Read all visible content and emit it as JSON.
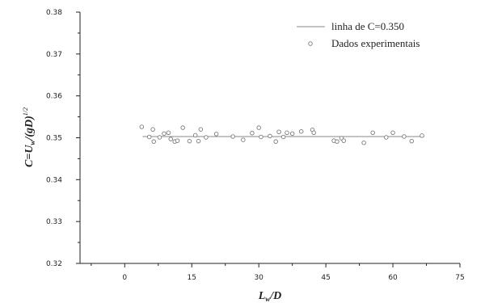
{
  "chart_data": {
    "type": "scatter",
    "xlabel_main": "L",
    "xlabel_sub": "w",
    "xlabel_rest": "/D",
    "ylabel_prefix": "C=U",
    "ylabel_sub": "w",
    "ylabel_mid": "/(gD)",
    "ylabel_sup": "1/2",
    "xlim": [
      -10,
      75
    ],
    "ylim": [
      0.32,
      0.38
    ],
    "x_ticks": [
      0,
      15,
      30,
      45,
      60,
      75
    ],
    "x_tick_labels": [
      "0",
      "15",
      "30",
      "45",
      "60",
      "75"
    ],
    "y_ticks": [
      0.32,
      0.33,
      0.34,
      0.35,
      0.36,
      0.37,
      0.38
    ],
    "y_tick_labels": [
      "0.32",
      "0.33",
      "0.34",
      "0.35",
      "0.36",
      "0.37",
      "0.38"
    ],
    "legend_position": "top-right",
    "fit_line": {
      "name": "linha de C=0.350",
      "y": 0.3503,
      "x_range": [
        4,
        67
      ]
    },
    "series": [
      {
        "name": "Dados experimentais",
        "x": [
          3.8,
          5.5,
          6.3,
          6.5,
          7.8,
          8.8,
          9.8,
          10.3,
          11.2,
          11.8,
          13.0,
          14.5,
          15.8,
          16.5,
          17.0,
          18.2,
          20.5,
          24.2,
          26.5,
          28.5,
          30.0,
          30.5,
          32.5,
          33.8,
          34.5,
          35.5,
          36.3,
          37.5,
          39.5,
          42.0,
          42.3,
          46.8,
          47.5,
          48.5,
          49.0,
          53.5,
          55.5,
          58.5,
          60.0,
          62.5,
          64.2,
          66.5
        ],
        "y": [
          0.3526,
          0.3502,
          0.352,
          0.3491,
          0.3501,
          0.351,
          0.3512,
          0.3497,
          0.3491,
          0.3493,
          0.3524,
          0.3492,
          0.3506,
          0.3492,
          0.352,
          0.3501,
          0.3509,
          0.3503,
          0.3495,
          0.3511,
          0.3524,
          0.3502,
          0.3504,
          0.3491,
          0.3514,
          0.3502,
          0.3512,
          0.351,
          0.3515,
          0.3519,
          0.3512,
          0.3493,
          0.3491,
          0.3499,
          0.3493,
          0.3488,
          0.3512,
          0.3501,
          0.3512,
          0.3503,
          0.3492,
          0.3505
        ]
      }
    ]
  }
}
